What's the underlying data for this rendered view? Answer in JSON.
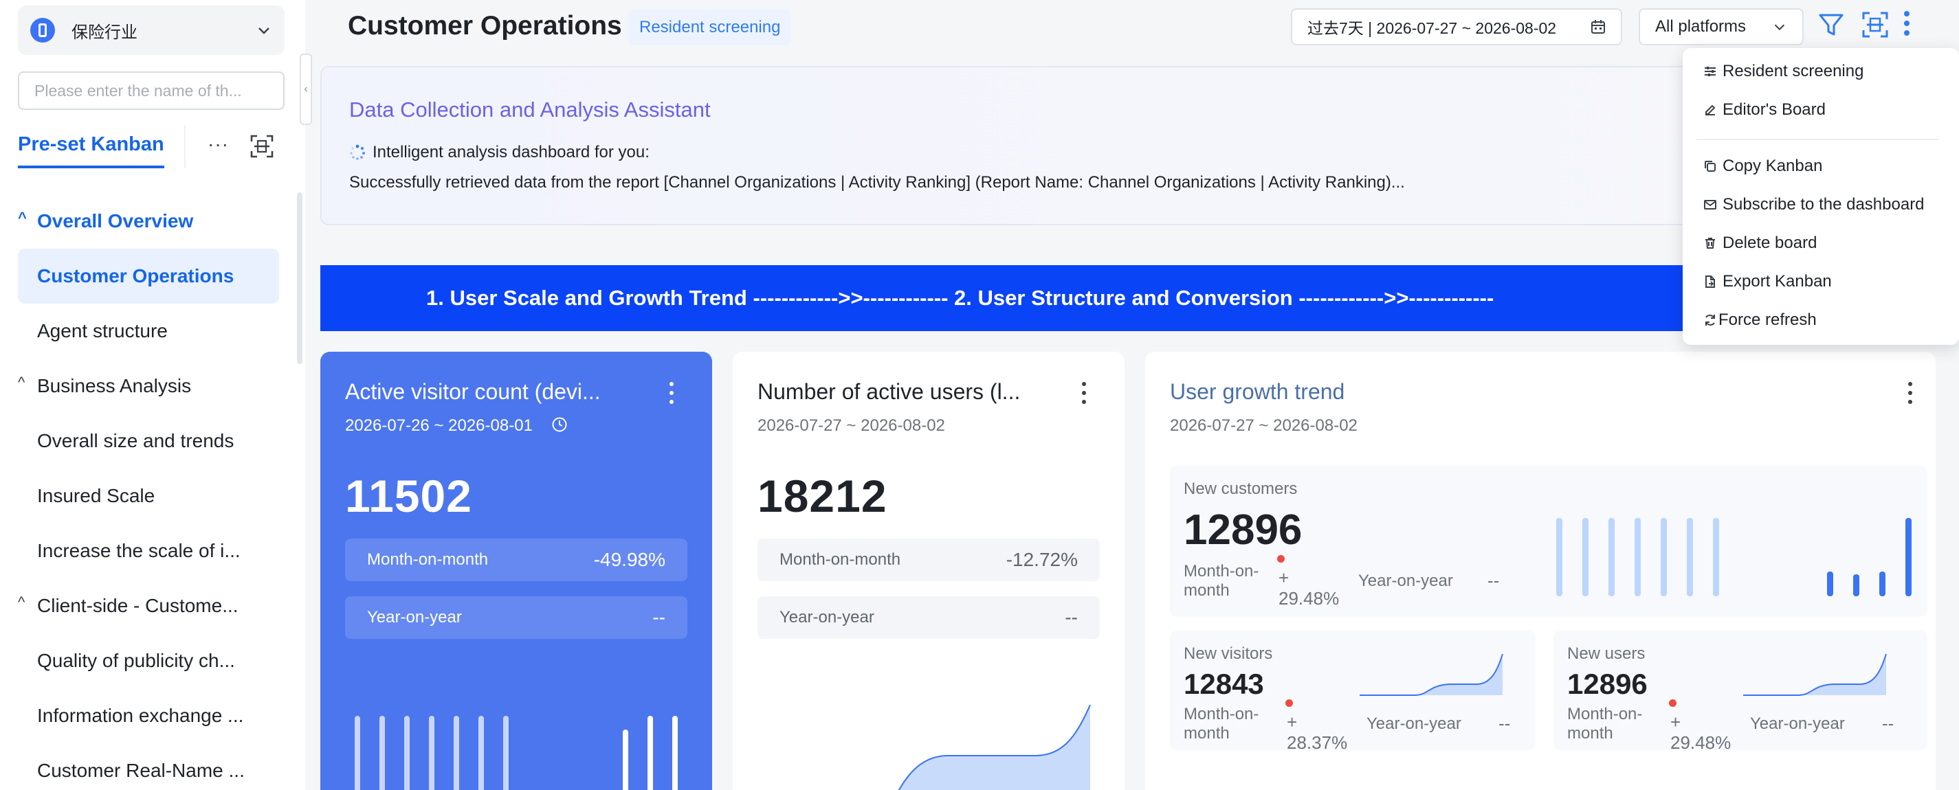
{
  "sidebar": {
    "industry_label": "保险行业",
    "search_placeholder": "Please enter the name of th...",
    "kanban_tab": "Pre-set Kanban",
    "more": "···",
    "items": [
      {
        "label": "Overall Overview",
        "type": "group"
      },
      {
        "label": "Customer Operations",
        "type": "active"
      },
      {
        "label": "Agent structure",
        "type": "child"
      },
      {
        "label": "Business Analysis",
        "type": "group"
      },
      {
        "label": "Overall size and trends",
        "type": "child"
      },
      {
        "label": "Insured Scale",
        "type": "child"
      },
      {
        "label": "Increase the scale of i...",
        "type": "child"
      },
      {
        "label": "Client-side - Custome...",
        "type": "group"
      },
      {
        "label": "Quality of publicity ch...",
        "type": "child"
      },
      {
        "label": "Information exchange ...",
        "type": "child"
      },
      {
        "label": "Customer Real-Name ...",
        "type": "child"
      }
    ]
  },
  "header": {
    "title": "Customer Operations",
    "screening_badge": "Resident screening",
    "date_range": "过去7天 | 2026-07-27 ~ 2026-08-02",
    "platform": "All platforms"
  },
  "assistant": {
    "title": "Data Collection and Analysis Assistant",
    "status": "Intelligent analysis dashboard for you:",
    "message": "Successfully retrieved data from the report [Channel Organizations | Activity Ranking] (Report Name: Channel Organizations | Activity Ranking)..."
  },
  "banner": {
    "text": "1. User Scale and Growth Trend ------------>>------------ 2. User Structure and Conversion ------------>>------------"
  },
  "cards": {
    "active_visitors": {
      "title": "Active visitor count (devi...",
      "date": "2026-07-26 ~ 2026-08-01",
      "value": "11502",
      "mom_label": "Month-on-month",
      "mom_value": "-49.98%",
      "yoy_label": "Year-on-year",
      "yoy_value": "--"
    },
    "active_users": {
      "title": "Number of active users (l...",
      "date": "2026-07-27 ~ 2026-08-02",
      "value": "18212",
      "mom_label": "Month-on-month",
      "mom_value": "-12.72%",
      "yoy_label": "Year-on-year",
      "yoy_value": "--"
    },
    "growth": {
      "title": "User growth trend",
      "date": "2026-07-27 ~ 2026-08-02",
      "new_customers": {
        "label": "New customers",
        "value": "12896",
        "mom_label_1": "Month-on-",
        "mom_label_2": "month",
        "mom_value_1": "+",
        "mom_value_2": "29.48%",
        "yoy_label": "Year-on-year",
        "yoy_value": "--"
      },
      "new_visitors": {
        "label": "New visitors",
        "value": "12843",
        "mom_label_1": "Month-on-",
        "mom_label_2": "month",
        "mom_value_1": "+",
        "mom_value_2": "28.37%",
        "yoy_label": "Year-on-year",
        "yoy_value": "--"
      },
      "new_users": {
        "label": "New users",
        "value": "12896",
        "mom_label_1": "Month-on-",
        "mom_label_2": "month",
        "mom_value_1": "+",
        "mom_value_2": "29.48%",
        "yoy_label": "Year-on-year",
        "yoy_value": "--"
      }
    }
  },
  "menu": {
    "items": [
      {
        "label": "Resident screening",
        "icon": "sliders-icon"
      },
      {
        "label": "Editor's Board",
        "icon": "edit-icon"
      },
      {
        "label": "Copy Kanban",
        "icon": "copy-icon"
      },
      {
        "label": "Subscribe to the dashboard",
        "icon": "mail-icon"
      },
      {
        "label": "Delete board",
        "icon": "trash-icon"
      },
      {
        "label": "Export Kanban",
        "icon": "export-icon"
      },
      {
        "label": "Force refresh",
        "icon": "refresh-icon"
      }
    ]
  },
  "colors": {
    "accent": "#1666e6",
    "banner": "#0a44f7",
    "card_blue": "#4c76ee",
    "alert_dot": "#f0493f"
  }
}
